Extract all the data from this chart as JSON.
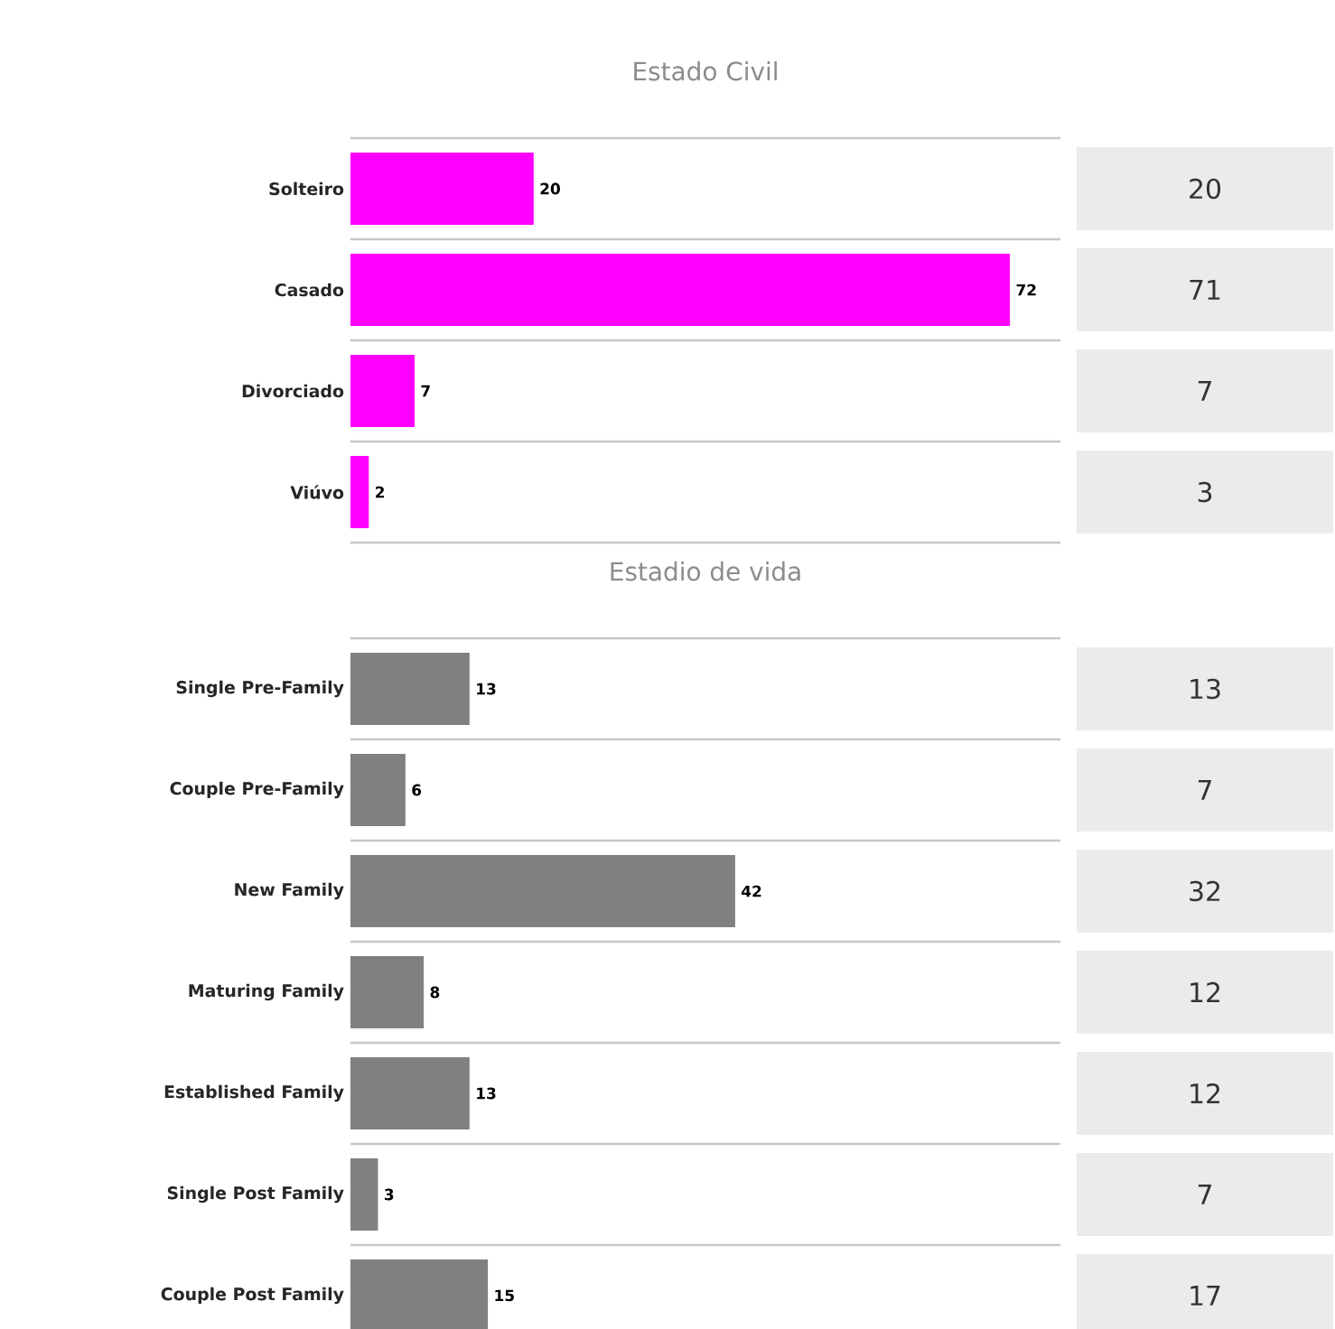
{
  "chart_data": [
    {
      "type": "bar",
      "orientation": "horizontal",
      "title": "Estado Civil",
      "categories": [
        "Solteiro",
        "Casado",
        "Divorciado",
        "Viúvo"
      ],
      "values": [
        20,
        72,
        7,
        2
      ],
      "color": "#ff00ff",
      "data_labels": true
    },
    {
      "type": "other",
      "values": [
        20,
        71,
        7,
        3
      ],
      "color": "#ebebeb",
      "data_labels": true
    },
    {
      "type": "bar",
      "orientation": "horizontal",
      "title": "Estadio de vida",
      "categories": [
        "Single Pre-Family",
        "Couple Pre-Family",
        "New Family",
        "Maturing Family",
        "Established Family",
        "Single Post Family",
        "Couple Post Family"
      ],
      "values": [
        13,
        6,
        42,
        8,
        13,
        3,
        15
      ],
      "color": "#808080",
      "data_labels": true
    },
    {
      "type": "other",
      "values": [
        13,
        7,
        32,
        12,
        12,
        7,
        17
      ],
      "color": "#ebebeb",
      "data_labels": true
    }
  ]
}
